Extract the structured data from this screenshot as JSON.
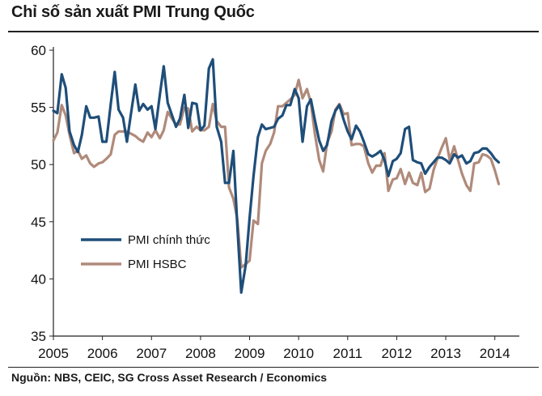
{
  "title": "Chỉ số sản xuất PMI Trung Quốc",
  "source": "Nguồn: NBS, CEIC, SG Cross Asset Research / Economics",
  "chart_data": {
    "type": "line",
    "title": "Chỉ số sản xuất PMI Trung Quốc",
    "xlabel": "",
    "ylabel": "",
    "xlim": [
      2005,
      2014.5
    ],
    "ylim": [
      35,
      60
    ],
    "yticks": [
      35,
      40,
      45,
      50,
      55,
      60
    ],
    "xticks": [
      "2005",
      "2006",
      "2007",
      "2008",
      "2009",
      "2010",
      "2011",
      "2012",
      "2013",
      "2014"
    ],
    "grid": false,
    "legend_position": "lower-left",
    "series": [
      {
        "name": "PMI chính thức",
        "color": "#1F4E79",
        "points": [
          [
            2005.0,
            54.7
          ],
          [
            2005.08,
            54.5
          ],
          [
            2005.17,
            57.9
          ],
          [
            2005.25,
            56.7
          ],
          [
            2005.33,
            52.9
          ],
          [
            2005.42,
            51.7
          ],
          [
            2005.5,
            51.1
          ],
          [
            2005.58,
            52.6
          ],
          [
            2005.67,
            55.1
          ],
          [
            2005.75,
            54.1
          ],
          [
            2005.83,
            54.1
          ],
          [
            2005.92,
            54.2
          ],
          [
            2006.0,
            52.0
          ],
          [
            2006.08,
            52.0
          ],
          [
            2006.17,
            55.3
          ],
          [
            2006.25,
            58.1
          ],
          [
            2006.33,
            54.8
          ],
          [
            2006.42,
            54.1
          ],
          [
            2006.5,
            52.0
          ],
          [
            2006.58,
            54.4
          ],
          [
            2006.67,
            57.0
          ],
          [
            2006.75,
            54.7
          ],
          [
            2006.83,
            55.3
          ],
          [
            2006.92,
            54.8
          ],
          [
            2007.0,
            55.1
          ],
          [
            2007.08,
            53.1
          ],
          [
            2007.17,
            56.1
          ],
          [
            2007.25,
            58.6
          ],
          [
            2007.33,
            55.4
          ],
          [
            2007.42,
            54.3
          ],
          [
            2007.5,
            53.3
          ],
          [
            2007.58,
            54.0
          ],
          [
            2007.67,
            56.1
          ],
          [
            2007.75,
            53.2
          ],
          [
            2007.83,
            55.4
          ],
          [
            2007.92,
            55.3
          ],
          [
            2008.0,
            53.0
          ],
          [
            2008.08,
            53.4
          ],
          [
            2008.17,
            58.4
          ],
          [
            2008.25,
            59.2
          ],
          [
            2008.33,
            53.3
          ],
          [
            2008.42,
            52.0
          ],
          [
            2008.5,
            48.4
          ],
          [
            2008.58,
            48.4
          ],
          [
            2008.67,
            51.2
          ],
          [
            2008.75,
            44.6
          ],
          [
            2008.83,
            38.8
          ],
          [
            2008.92,
            41.2
          ],
          [
            2009.0,
            45.3
          ],
          [
            2009.08,
            49.0
          ],
          [
            2009.17,
            52.4
          ],
          [
            2009.25,
            53.5
          ],
          [
            2009.33,
            53.1
          ],
          [
            2009.42,
            53.2
          ],
          [
            2009.5,
            53.3
          ],
          [
            2009.58,
            54.0
          ],
          [
            2009.67,
            54.3
          ],
          [
            2009.75,
            55.2
          ],
          [
            2009.83,
            55.2
          ],
          [
            2009.92,
            56.6
          ],
          [
            2010.0,
            55.8
          ],
          [
            2010.08,
            52.0
          ],
          [
            2010.17,
            55.1
          ],
          [
            2010.25,
            55.7
          ],
          [
            2010.33,
            53.9
          ],
          [
            2010.42,
            52.1
          ],
          [
            2010.5,
            51.2
          ],
          [
            2010.58,
            51.7
          ],
          [
            2010.67,
            53.8
          ],
          [
            2010.75,
            54.7
          ],
          [
            2010.83,
            55.2
          ],
          [
            2010.92,
            53.9
          ],
          [
            2011.0,
            52.9
          ],
          [
            2011.08,
            52.2
          ],
          [
            2011.17,
            53.4
          ],
          [
            2011.25,
            52.9
          ],
          [
            2011.33,
            52.0
          ],
          [
            2011.42,
            50.9
          ],
          [
            2011.5,
            50.7
          ],
          [
            2011.58,
            50.9
          ],
          [
            2011.67,
            51.2
          ],
          [
            2011.75,
            50.4
          ],
          [
            2011.83,
            49.0
          ],
          [
            2011.92,
            50.3
          ],
          [
            2012.0,
            50.5
          ],
          [
            2012.08,
            51.0
          ],
          [
            2012.17,
            53.1
          ],
          [
            2012.25,
            53.3
          ],
          [
            2012.33,
            50.4
          ],
          [
            2012.42,
            50.2
          ],
          [
            2012.5,
            50.1
          ],
          [
            2012.58,
            49.2
          ],
          [
            2012.67,
            49.8
          ],
          [
            2012.75,
            50.2
          ],
          [
            2012.83,
            50.6
          ],
          [
            2012.92,
            50.6
          ],
          [
            2013.0,
            50.4
          ],
          [
            2013.08,
            50.1
          ],
          [
            2013.17,
            50.9
          ],
          [
            2013.25,
            50.6
          ],
          [
            2013.33,
            50.8
          ],
          [
            2013.42,
            50.1
          ],
          [
            2013.5,
            50.3
          ],
          [
            2013.58,
            51.0
          ],
          [
            2013.67,
            51.1
          ],
          [
            2013.75,
            51.4
          ],
          [
            2013.83,
            51.4
          ],
          [
            2013.92,
            51.0
          ],
          [
            2014.0,
            50.5
          ],
          [
            2014.08,
            50.2
          ]
        ]
      },
      {
        "name": "PMI HSBC",
        "color": "#B08A7A",
        "points": [
          [
            2005.0,
            52.1
          ],
          [
            2005.08,
            52.8
          ],
          [
            2005.17,
            55.2
          ],
          [
            2005.25,
            54.3
          ],
          [
            2005.33,
            52.6
          ],
          [
            2005.42,
            51.0
          ],
          [
            2005.5,
            51.2
          ],
          [
            2005.58,
            50.5
          ],
          [
            2005.67,
            50.8
          ],
          [
            2005.75,
            50.1
          ],
          [
            2005.83,
            49.8
          ],
          [
            2005.92,
            50.1
          ],
          [
            2006.0,
            50.2
          ],
          [
            2006.08,
            50.5
          ],
          [
            2006.17,
            50.9
          ],
          [
            2006.25,
            52.6
          ],
          [
            2006.33,
            52.9
          ],
          [
            2006.42,
            52.9
          ],
          [
            2006.5,
            52.9
          ],
          [
            2006.58,
            52.7
          ],
          [
            2006.67,
            52.5
          ],
          [
            2006.75,
            52.2
          ],
          [
            2006.83,
            52.0
          ],
          [
            2006.92,
            52.8
          ],
          [
            2007.0,
            52.4
          ],
          [
            2007.08,
            53.0
          ],
          [
            2007.17,
            52.3
          ],
          [
            2007.25,
            53.0
          ],
          [
            2007.33,
            54.6
          ],
          [
            2007.42,
            54.0
          ],
          [
            2007.5,
            53.5
          ],
          [
            2007.58,
            53.5
          ],
          [
            2007.67,
            55.0
          ],
          [
            2007.75,
            54.9
          ],
          [
            2007.83,
            52.9
          ],
          [
            2007.92,
            53.3
          ],
          [
            2008.0,
            53.0
          ],
          [
            2008.08,
            53.0
          ],
          [
            2008.17,
            53.3
          ],
          [
            2008.25,
            55.3
          ],
          [
            2008.33,
            53.8
          ],
          [
            2008.42,
            53.3
          ],
          [
            2008.5,
            53.3
          ],
          [
            2008.58,
            48.0
          ],
          [
            2008.67,
            47.0
          ],
          [
            2008.75,
            45.2
          ],
          [
            2008.83,
            41.0
          ],
          [
            2008.92,
            41.3
          ],
          [
            2009.0,
            41.6
          ],
          [
            2009.08,
            45.1
          ],
          [
            2009.17,
            44.8
          ],
          [
            2009.25,
            50.1
          ],
          [
            2009.33,
            51.2
          ],
          [
            2009.42,
            51.8
          ],
          [
            2009.5,
            52.8
          ],
          [
            2009.58,
            55.1
          ],
          [
            2009.67,
            55.1
          ],
          [
            2009.75,
            55.4
          ],
          [
            2009.83,
            55.7
          ],
          [
            2009.92,
            56.1
          ],
          [
            2010.0,
            57.4
          ],
          [
            2010.08,
            55.8
          ],
          [
            2010.17,
            56.6
          ],
          [
            2010.25,
            55.4
          ],
          [
            2010.33,
            52.7
          ],
          [
            2010.42,
            50.4
          ],
          [
            2010.5,
            49.4
          ],
          [
            2010.58,
            51.9
          ],
          [
            2010.67,
            52.9
          ],
          [
            2010.75,
            54.8
          ],
          [
            2010.83,
            55.3
          ],
          [
            2010.92,
            54.4
          ],
          [
            2011.0,
            54.5
          ],
          [
            2011.08,
            51.7
          ],
          [
            2011.17,
            51.8
          ],
          [
            2011.25,
            51.8
          ],
          [
            2011.33,
            51.6
          ],
          [
            2011.42,
            50.1
          ],
          [
            2011.5,
            49.3
          ],
          [
            2011.58,
            49.9
          ],
          [
            2011.67,
            49.9
          ],
          [
            2011.75,
            51.0
          ],
          [
            2011.83,
            47.7
          ],
          [
            2011.92,
            48.7
          ],
          [
            2012.0,
            48.8
          ],
          [
            2012.08,
            49.6
          ],
          [
            2012.17,
            48.3
          ],
          [
            2012.25,
            49.3
          ],
          [
            2012.33,
            48.4
          ],
          [
            2012.42,
            48.2
          ],
          [
            2012.5,
            49.3
          ],
          [
            2012.58,
            47.6
          ],
          [
            2012.67,
            47.9
          ],
          [
            2012.75,
            49.5
          ],
          [
            2012.83,
            50.5
          ],
          [
            2012.92,
            51.5
          ],
          [
            2013.0,
            52.3
          ],
          [
            2013.08,
            50.4
          ],
          [
            2013.17,
            51.6
          ],
          [
            2013.25,
            50.4
          ],
          [
            2013.33,
            49.2
          ],
          [
            2013.42,
            48.2
          ],
          [
            2013.5,
            47.7
          ],
          [
            2013.58,
            50.1
          ],
          [
            2013.67,
            50.2
          ],
          [
            2013.75,
            50.9
          ],
          [
            2013.83,
            50.8
          ],
          [
            2013.92,
            50.5
          ],
          [
            2014.0,
            49.5
          ],
          [
            2014.08,
            48.3
          ]
        ]
      }
    ]
  }
}
